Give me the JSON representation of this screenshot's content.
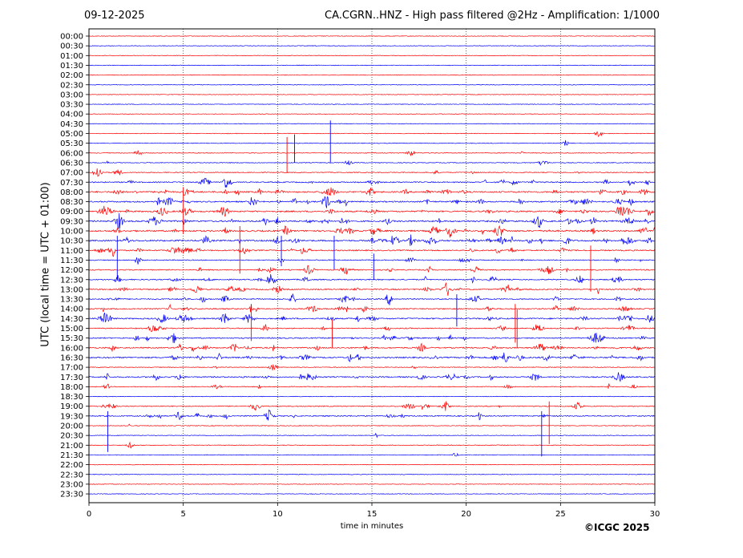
{
  "header": {
    "date": "09-12-2025",
    "title": "CA.CGRN..HNZ - High pass filtered @2Hz - Amplification: 1/1000"
  },
  "footer": {
    "copyright": "©ICGC 2025"
  },
  "colors": {
    "trace_a": "#ff0000",
    "trace_b": "#0000ff",
    "axes": "#000000",
    "grid": "#000000",
    "background": "#ffffff"
  },
  "chart_data": {
    "type": "line",
    "title": "CA.CGRN..HNZ - High pass filtered @2Hz - Amplification: 1/1000",
    "xlabel": "time in minutes",
    "ylabel": "UTC (local time = UTC + 01:00)",
    "xlim": [
      0,
      30
    ],
    "x_ticks": [
      0,
      5,
      10,
      15,
      20,
      25,
      30
    ],
    "grid": "vertical dotted lines at 5, 10, 15, 20, 25 minutes",
    "rows": [
      "00:00",
      "00:30",
      "01:00",
      "01:30",
      "02:00",
      "02:30",
      "03:00",
      "03:30",
      "04:00",
      "04:30",
      "05:00",
      "05:30",
      "06:00",
      "06:30",
      "07:00",
      "07:30",
      "08:00",
      "08:30",
      "09:00",
      "09:30",
      "10:00",
      "10:30",
      "11:00",
      "11:30",
      "12:00",
      "12:30",
      "13:00",
      "13:30",
      "14:00",
      "14:30",
      "15:00",
      "15:30",
      "16:00",
      "16:30",
      "17:00",
      "17:30",
      "18:00",
      "18:30",
      "19:00",
      "19:30",
      "20:00",
      "20:30",
      "21:00",
      "21:30",
      "22:00",
      "22:30",
      "23:00",
      "23:30"
    ],
    "row_colors": [
      "red",
      "blue"
    ],
    "activity": [
      0,
      0,
      0,
      0,
      0,
      0,
      0,
      0,
      0,
      0,
      0.05,
      0.05,
      0.1,
      0.1,
      0.25,
      0.5,
      0.8,
      0.7,
      0.8,
      0.9,
      0.9,
      0.9,
      0.6,
      0.3,
      0.4,
      0.5,
      0.6,
      0.5,
      0.5,
      0.7,
      0.4,
      0.5,
      0.6,
      0.7,
      0.1,
      0.6,
      0.2,
      0.0,
      0.35,
      0.5,
      0.05,
      0.05,
      0.05,
      0.05,
      0.0,
      0.0,
      0.0,
      0.0
    ],
    "spikes": [
      {
        "row": "06:30",
        "minute": 10.9,
        "direction": "up"
      },
      {
        "row": "06:30",
        "minute": 12.8,
        "direction": "up"
      },
      {
        "row": "07:00",
        "minute": 10.5,
        "direction": "up"
      },
      {
        "row": "08:00",
        "minute": 5.0,
        "direction": "down"
      },
      {
        "row": "10:00",
        "minute": 8.0,
        "direction": "down"
      },
      {
        "row": "10:30",
        "minute": 1.5,
        "direction": "down"
      },
      {
        "row": "10:30",
        "minute": 10.2,
        "direction": "down"
      },
      {
        "row": "10:30",
        "minute": 13.0,
        "direction": "down"
      },
      {
        "row": "11:00",
        "minute": 26.6,
        "direction": "down"
      },
      {
        "row": "12:30",
        "minute": 15.1,
        "direction": "up"
      },
      {
        "row": "13:30",
        "minute": 19.5,
        "direction": "down"
      },
      {
        "row": "14:00",
        "minute": 22.6,
        "direction": "down"
      },
      {
        "row": "14:00",
        "minute": 8.6,
        "direction": "down"
      },
      {
        "row": "16:00",
        "minute": 12.9,
        "direction": "up"
      },
      {
        "row": "16:00",
        "minute": 22.7,
        "direction": "up"
      },
      {
        "row": "19:00",
        "minute": 24.4,
        "direction": "down"
      },
      {
        "row": "19:30",
        "minute": 1.0,
        "direction": "down"
      },
      {
        "row": "19:30",
        "minute": 24.0,
        "direction": "down"
      }
    ]
  }
}
